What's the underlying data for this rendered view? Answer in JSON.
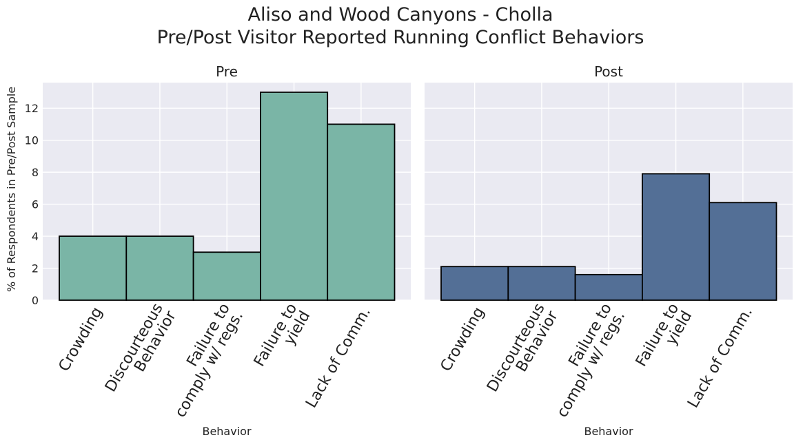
{
  "title_line1": "Aliso and Wood Canyons - Cholla",
  "title_line2": "Pre/Post Visitor Reported Running Conflict Behaviors",
  "ylabel": "% of Respondents in Pre/Post Sample",
  "colors": {
    "plot_background": "#eaeaf2",
    "grid": "#ffffff",
    "pre_bar": "#7ab5a6",
    "post_bar": "#536f96",
    "bar_edge": "#000000"
  },
  "chart_data": [
    {
      "type": "bar",
      "panel_title": "Pre",
      "xlabel": "Behavior",
      "ylabel": "% of Respondents in Pre/Post Sample",
      "categories": [
        [
          "Crowding"
        ],
        [
          "Discourteous",
          "Behavior"
        ],
        [
          "Failure to",
          "comply w/ regs."
        ],
        [
          "Failure to",
          "yield"
        ],
        [
          "Lack of Comm."
        ]
      ],
      "values": [
        4,
        4,
        3,
        13,
        11
      ],
      "ylim": [
        0,
        13.6
      ],
      "yticks": [
        0,
        2,
        4,
        6,
        8,
        10,
        12
      ],
      "grid": true,
      "color": "#7ab5a6"
    },
    {
      "type": "bar",
      "panel_title": "Post",
      "xlabel": "Behavior",
      "ylabel": "",
      "categories": [
        [
          "Crowding"
        ],
        [
          "Discourteous",
          "Behavior"
        ],
        [
          "Failure to",
          "comply w/ regs."
        ],
        [
          "Failure to",
          "yield"
        ],
        [
          "Lack of Comm."
        ]
      ],
      "values": [
        2.1,
        2.1,
        1.6,
        7.9,
        6.1
      ],
      "ylim": [
        0,
        13.6
      ],
      "yticks": [
        0,
        2,
        4,
        6,
        8,
        10,
        12
      ],
      "grid": true,
      "color": "#536f96"
    }
  ]
}
